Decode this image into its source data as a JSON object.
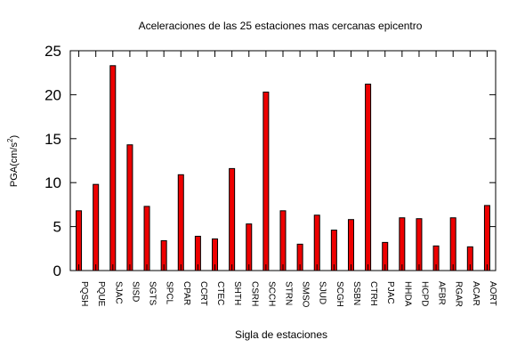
{
  "chart_data": {
    "type": "bar",
    "title": "Aceleraciones de las 25 estaciones mas cercanas epicentro",
    "xlabel": "Sigla de estaciones",
    "ylabel_prefix": "PGA(cm/s",
    "ylabel_sup": "2",
    "ylabel_suffix": ")",
    "ylim": [
      0,
      25
    ],
    "yticks": [
      0,
      5,
      10,
      15,
      20,
      25
    ],
    "bar_color": "#ee0000",
    "grid": false,
    "categories": [
      "PQSH",
      "PQUE",
      "SJAC",
      "SISD",
      "SGTS",
      "SPCL",
      "CPAR",
      "CCRT",
      "CTEC",
      "SHTH",
      "CSRH",
      "SCCH",
      "STRN",
      "SMSO",
      "SJUD",
      "SCGH",
      "SSBN",
      "CTRH",
      "PJAC",
      "HHDA",
      "HCPD",
      "AFBR",
      "RGAR",
      "ACAR",
      "AORT"
    ],
    "values": [
      6.8,
      9.8,
      23.3,
      14.3,
      7.3,
      3.4,
      10.9,
      3.9,
      3.6,
      11.6,
      5.3,
      20.3,
      6.8,
      3.0,
      6.3,
      4.6,
      5.8,
      21.2,
      3.2,
      6.0,
      5.9,
      2.8,
      6.0,
      2.7,
      7.4
    ]
  }
}
